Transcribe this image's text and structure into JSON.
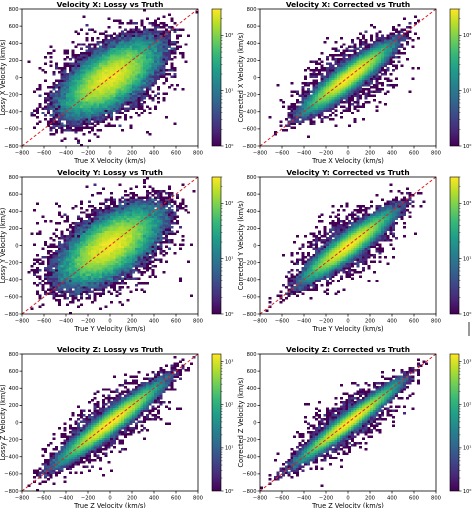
{
  "colors": {
    "viridis": [
      "#440154",
      "#482878",
      "#3e4989",
      "#31688e",
      "#26828e",
      "#1f9e89",
      "#35b779",
      "#6ece58",
      "#b5de2b",
      "#fde725"
    ],
    "identity_line": "#d62728",
    "background": "#ffffff",
    "axes": "#000000"
  },
  "chart_data": [
    {
      "type": "heatmap",
      "title": "Velocity X: Lossy vs Truth",
      "xlabel": "True X Velocity (km/s)",
      "ylabel": "Lossy X Velocity (km/s)",
      "xlim": [
        -800,
        800
      ],
      "ylim": [
        -800,
        800
      ],
      "xticks": [
        "−800",
        "−600",
        "−400",
        "−200",
        "0",
        "200",
        "400",
        "600",
        "800"
      ],
      "yticks": [
        "−800",
        "−600",
        "−400",
        "−200",
        "0",
        "200",
        "400",
        "600",
        "800"
      ],
      "colorbar": {
        "scale": "log",
        "ticks": [
          "10⁰",
          "10¹",
          "10²"
        ],
        "range": [
          1,
          300
        ]
      },
      "reference_line": "y = x",
      "distribution": {
        "center": [
          0,
          0
        ],
        "sigma_major": 235,
        "sigma_minor": 110,
        "angle_deg": 45,
        "outlier_spread": 420
      }
    },
    {
      "type": "heatmap",
      "title": "Velocity X: Corrected vs Truth",
      "xlabel": "True X Velocity (km/s)",
      "ylabel": "Corrected X Velocity (km/s)",
      "xlim": [
        -800,
        800
      ],
      "ylim": [
        -800,
        800
      ],
      "xticks": [
        "−800",
        "−600",
        "−400",
        "−200",
        "0",
        "200",
        "400",
        "600",
        "800"
      ],
      "yticks": [
        "−800",
        "−600",
        "−400",
        "−200",
        "0",
        "200",
        "400",
        "600",
        "800"
      ],
      "colorbar": {
        "scale": "log",
        "ticks": [
          "10⁰",
          "10¹",
          "10²"
        ],
        "range": [
          1,
          300
        ]
      },
      "reference_line": "y = x",
      "distribution": {
        "center": [
          0,
          0
        ],
        "sigma_major": 220,
        "sigma_minor": 45,
        "angle_deg": 45,
        "outlier_spread": 260
      }
    },
    {
      "type": "heatmap",
      "title": "Velocity Y: Lossy vs Truth",
      "xlabel": "True Y Velocity (km/s)",
      "ylabel": "Lossy Y Velocity (km/s)",
      "xlim": [
        -800,
        800
      ],
      "ylim": [
        -800,
        800
      ],
      "xticks": [
        "−800",
        "−600",
        "−400",
        "−200",
        "0",
        "200",
        "400",
        "600",
        "800"
      ],
      "yticks": [
        "−800",
        "−600",
        "−400",
        "−200",
        "0",
        "200",
        "400",
        "600",
        "800"
      ],
      "colorbar": {
        "scale": "log",
        "ticks": [
          "10⁰",
          "10¹",
          "10²"
        ],
        "range": [
          1,
          300
        ]
      },
      "reference_line": "y = x",
      "distribution": {
        "center": [
          0,
          0
        ],
        "sigma_major": 240,
        "sigma_minor": 115,
        "angle_deg": 45,
        "outlier_spread": 430
      }
    },
    {
      "type": "heatmap",
      "title": "Velocity Y: Corrected vs Truth",
      "xlabel": "True Y Velocity (km/s)",
      "ylabel": "Corrected Y Velocity (km/s)",
      "xlim": [
        -800,
        800
      ],
      "ylim": [
        -800,
        800
      ],
      "xticks": [
        "−800",
        "−600",
        "−400",
        "−200",
        "0",
        "200",
        "400",
        "600",
        "800"
      ],
      "yticks": [
        "−800",
        "−600",
        "−400",
        "−200",
        "0",
        "200",
        "400",
        "600",
        "800"
      ],
      "colorbar": {
        "scale": "log",
        "ticks": [
          "10⁰",
          "10¹",
          "10²"
        ],
        "range": [
          1,
          300
        ]
      },
      "reference_line": "y = x",
      "distribution": {
        "center": [
          0,
          0
        ],
        "sigma_major": 225,
        "sigma_minor": 45,
        "angle_deg": 45,
        "outlier_spread": 260
      }
    },
    {
      "type": "heatmap",
      "title": "Velocity Z: Lossy vs Truth",
      "xlabel": "True Z Velocity (km/s)",
      "ylabel": "Lossy Z Velocity (km/s)",
      "xlim": [
        -800,
        800
      ],
      "ylim": [
        -800,
        800
      ],
      "xticks": [
        "−800",
        "−600",
        "−400",
        "−200",
        "0",
        "200",
        "400",
        "600",
        "800"
      ],
      "yticks": [
        "−800",
        "−600",
        "−400",
        "−200",
        "0",
        "200",
        "400",
        "600",
        "800"
      ],
      "colorbar": {
        "scale": "log",
        "ticks": [
          "10⁰",
          "10¹",
          "10²",
          "10³"
        ],
        "range": [
          1,
          1500
        ]
      },
      "reference_line": "y = x",
      "distribution": {
        "center": [
          0,
          0
        ],
        "sigma_major": 260,
        "sigma_minor": 40,
        "angle_deg": 45,
        "outlier_spread": 220
      }
    },
    {
      "type": "heatmap",
      "title": "Velocity Z: Corrected vs Truth",
      "xlabel": "True Z Velocity (km/s)",
      "ylabel": "Corrected Z Velocity (km/s)",
      "xlim": [
        -800,
        800
      ],
      "ylim": [
        -800,
        800
      ],
      "xticks": [
        "−800",
        "−600",
        "−400",
        "−200",
        "0",
        "200",
        "400",
        "600",
        "800"
      ],
      "yticks": [
        "−800",
        "−600",
        "−400",
        "−200",
        "0",
        "200",
        "400",
        "600",
        "800"
      ],
      "colorbar": {
        "scale": "log",
        "ticks": [
          "10⁰",
          "10¹",
          "10²",
          "10³"
        ],
        "range": [
          1,
          1500
        ]
      },
      "reference_line": "y = x",
      "distribution": {
        "center": [
          0,
          0
        ],
        "sigma_major": 250,
        "sigma_minor": 32,
        "angle_deg": 45,
        "outlier_spread": 200
      }
    }
  ]
}
